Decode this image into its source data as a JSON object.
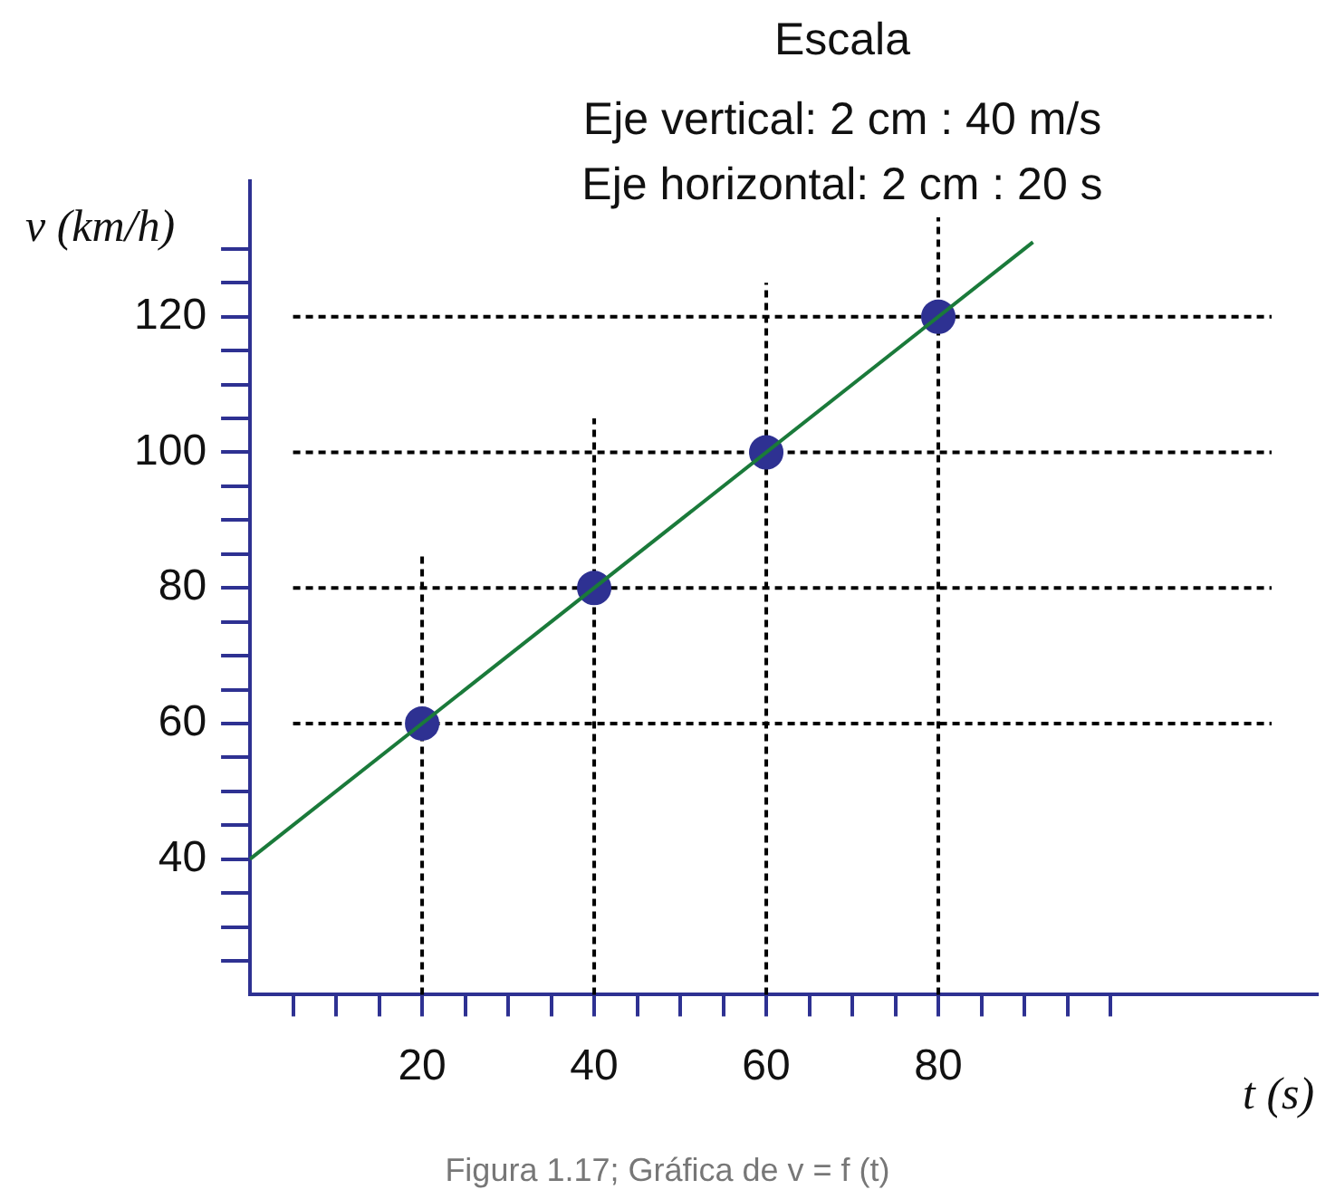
{
  "chart_data": {
    "type": "scatter",
    "title": "Escala",
    "subtitle": "Eje vertical: 2 cm : 40 m/s\nEje horizontal: 2 cm : 20 s",
    "xlabel": "t (s)",
    "ylabel": "v (km/h)",
    "annotations": [
      "Figura 1.17; Gráfica de v = f (t)"
    ],
    "xlim": [
      0,
      124
    ],
    "ylim": [
      20,
      140
    ],
    "xticks": [
      {
        "value": 5,
        "label": null
      },
      {
        "value": 10,
        "label": null
      },
      {
        "value": 15,
        "label": null
      },
      20,
      {
        "value": 25,
        "label": null
      },
      {
        "value": 30,
        "label": null
      },
      {
        "value": 35,
        "label": null
      },
      40,
      {
        "value": 45,
        "label": null
      },
      {
        "value": 50,
        "label": null
      },
      {
        "value": 55,
        "label": null
      },
      60,
      {
        "value": 65,
        "label": null
      },
      {
        "value": 70,
        "label": null
      },
      {
        "value": 75,
        "label": null
      },
      80,
      {
        "value": 85,
        "label": null
      },
      {
        "value": 90,
        "label": null
      },
      {
        "value": 95,
        "label": null
      },
      {
        "value": 100,
        "label": null
      }
    ],
    "yticks": [
      {
        "value": 25,
        "label": null
      },
      {
        "value": 30,
        "label": null
      },
      {
        "value": 35,
        "label": null
      },
      40,
      {
        "value": 45,
        "label": null
      },
      {
        "value": 50,
        "label": null
      },
      {
        "value": 55,
        "label": null
      },
      60,
      {
        "value": 65,
        "label": null
      },
      {
        "value": 70,
        "label": null
      },
      {
        "value": 75,
        "label": null
      },
      80,
      {
        "value": 85,
        "label": null
      },
      {
        "value": 90,
        "label": null
      },
      {
        "value": 95,
        "label": null
      },
      100,
      {
        "value": 105,
        "label": null
      },
      {
        "value": 110,
        "label": null
      },
      {
        "value": 115,
        "label": null
      },
      120,
      {
        "value": 125,
        "label": null
      },
      {
        "value": 130,
        "label": null
      }
    ],
    "series": [
      {
        "type": "line",
        "color": "#1a7a3a",
        "x": [
          0,
          91
        ],
        "values": [
          40,
          131
        ],
        "marker": "none"
      },
      {
        "type": "scatter",
        "color": "#2e3192",
        "x": [
          20,
          40,
          60,
          80
        ],
        "values": [
          60,
          80,
          100,
          120
        ],
        "marker": "circle"
      }
    ],
    "ref_lines": [
      {
        "axis": "y",
        "value": 60
      },
      {
        "axis": "y",
        "value": 80
      },
      {
        "axis": "y",
        "value": 100
      },
      {
        "axis": "y",
        "value": 120
      },
      {
        "axis": "x",
        "value": 20
      },
      {
        "axis": "x",
        "value": 40
      },
      {
        "axis": "x",
        "value": 60
      },
      {
        "axis": "x",
        "value": 80
      }
    ],
    "legend": false,
    "grid": false
  }
}
